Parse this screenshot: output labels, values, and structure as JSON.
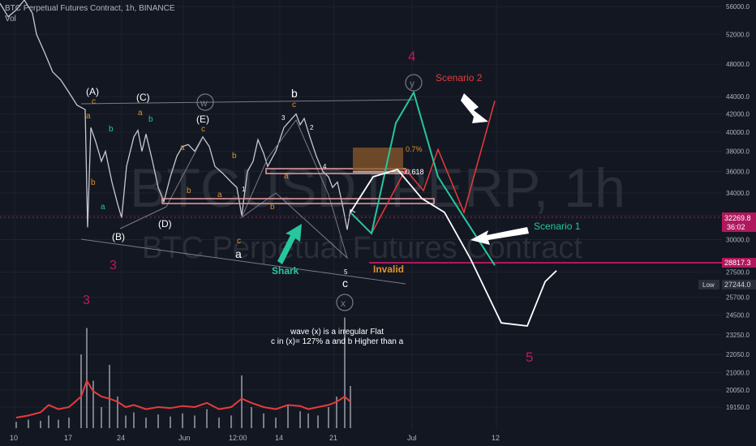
{
  "header": {
    "title": "BTC Perpetual Futures Contract, 1h, BINANCE",
    "sub": "Vol"
  },
  "watermark": {
    "line1": "BTCUSDTPERP, 1h",
    "line2": "BTC Perpetual Futures Contract"
  },
  "colors": {
    "bg": "#131722",
    "grid": "#1e222d",
    "candle": "#c7c9cf",
    "volume": "#7a7d86",
    "volume_ma": "#e83b3b",
    "orange": "#e0922a",
    "green": "#26c6a0",
    "red": "#e83b3b",
    "white": "#ffffff",
    "magenta": "#b0185e",
    "channel": "#787b86",
    "axis_text": "#b2b5be"
  },
  "chart_data": {
    "type": "line",
    "title": "BTC Perpetual Futures Contract, 1h, BINANCE",
    "xlabel": "",
    "ylabel": "",
    "y_scale": "log",
    "ylim": [
      18500,
      57000
    ],
    "x_ticks": [
      "10",
      "17",
      "24",
      "Jun",
      "12:00",
      "14",
      "21",
      "Jul",
      "12"
    ],
    "y_ticks": [
      56000,
      52000,
      48000,
      44000,
      42000,
      40000,
      38000,
      36000,
      34000,
      32000,
      30000,
      27500,
      25700,
      24500,
      23250,
      22050,
      21000,
      20050,
      19150
    ],
    "price_labels": [
      {
        "value": "32269.8",
        "sub": "36:02",
        "price": 32269.8
      },
      {
        "value": "28817.3",
        "price": 28817.3
      },
      {
        "value": "Low",
        "tag": "27244.0",
        "price": 27244.0
      }
    ],
    "fib_labels": [
      {
        "text": "0.7%",
        "price": 37900
      },
      {
        "text": "0.618",
        "price": 36250
      }
    ],
    "wave_labels": {
      "big_3_a": "3",
      "big_3_b": "3",
      "big_4": "4",
      "big_5": "5",
      "A": "(A)",
      "B": "(B)",
      "C": "(C)",
      "D": "(D)",
      "E": "(E)",
      "w": "w",
      "x": "x",
      "y": "y",
      "a": "a",
      "b": "b",
      "c": "c",
      "n1": "1",
      "n2": "2",
      "n3": "3",
      "n4": "4",
      "n5": "5",
      "la": "a",
      "lb": "b",
      "lc": "c"
    },
    "annotations": {
      "scenario1": "Scenario  1",
      "scenario2": "Scenario  2",
      "shark": "Shark",
      "invalid": "Invalid",
      "note1": "wave (x) is a irregular Flat",
      "note2": "c in (x)= 127% a and b Higher than a"
    },
    "price_path": [
      [
        0,
        56500
      ],
      [
        10,
        54500
      ],
      [
        20,
        55500
      ],
      [
        30,
        57000
      ],
      [
        40,
        55000
      ],
      [
        45,
        52000
      ],
      [
        55,
        49500
      ],
      [
        65,
        47000
      ],
      [
        75,
        46000
      ],
      [
        85,
        44500
      ],
      [
        95,
        43000
      ],
      [
        105,
        42500
      ],
      [
        108,
        31000
      ],
      [
        112,
        40500
      ],
      [
        118,
        39000
      ],
      [
        125,
        37000
      ],
      [
        130,
        38000
      ],
      [
        138,
        35000
      ],
      [
        145,
        33000
      ],
      [
        150,
        31800
      ],
      [
        156,
        36500
      ],
      [
        165,
        39500
      ],
      [
        170,
        40200
      ],
      [
        175,
        38000
      ],
      [
        180,
        39800
      ],
      [
        188,
        37000
      ],
      [
        195,
        34500
      ],
      [
        202,
        33200
      ],
      [
        210,
        35500
      ],
      [
        218,
        37500
      ],
      [
        225,
        38500
      ],
      [
        232,
        38700
      ],
      [
        240,
        38000
      ],
      [
        250,
        39500
      ],
      [
        258,
        38500
      ],
      [
        265,
        36500
      ],
      [
        275,
        35800
      ],
      [
        285,
        35000
      ],
      [
        292,
        34500
      ],
      [
        298,
        32000
      ],
      [
        305,
        36000
      ],
      [
        312,
        37000
      ],
      [
        318,
        39200
      ],
      [
        325,
        37800
      ],
      [
        330,
        36500
      ],
      [
        340,
        38000
      ],
      [
        350,
        40500
      ],
      [
        358,
        41300
      ],
      [
        365,
        42000
      ],
      [
        370,
        40800
      ],
      [
        375,
        41500
      ],
      [
        382,
        39500
      ],
      [
        390,
        37500
      ],
      [
        398,
        36000
      ],
      [
        405,
        35500
      ],
      [
        410,
        34500
      ],
      [
        416,
        35000
      ],
      [
        422,
        33000
      ],
      [
        428,
        30800
      ],
      [
        432,
        32500
      ],
      [
        438,
        32270
      ]
    ],
    "volume": [
      [
        20,
        6
      ],
      [
        35,
        8
      ],
      [
        50,
        7
      ],
      [
        60,
        12
      ],
      [
        72,
        8
      ],
      [
        85,
        10
      ],
      [
        100,
        70
      ],
      [
        107,
        95
      ],
      [
        115,
        45
      ],
      [
        125,
        20
      ],
      [
        135,
        60
      ],
      [
        145,
        30
      ],
      [
        155,
        12
      ],
      [
        165,
        15
      ],
      [
        180,
        10
      ],
      [
        195,
        13
      ],
      [
        210,
        11
      ],
      [
        225,
        14
      ],
      [
        240,
        12
      ],
      [
        255,
        18
      ],
      [
        270,
        10
      ],
      [
        285,
        12
      ],
      [
        298,
        50
      ],
      [
        310,
        20
      ],
      [
        325,
        14
      ],
      [
        340,
        10
      ],
      [
        355,
        22
      ],
      [
        370,
        16
      ],
      [
        380,
        14
      ],
      [
        392,
        12
      ],
      [
        405,
        20
      ],
      [
        415,
        30
      ],
      [
        425,
        105
      ],
      [
        432,
        40
      ]
    ],
    "volume_ma": [
      [
        20,
        10
      ],
      [
        35,
        12
      ],
      [
        50,
        15
      ],
      [
        60,
        22
      ],
      [
        72,
        18
      ],
      [
        85,
        20
      ],
      [
        100,
        30
      ],
      [
        107,
        45
      ],
      [
        115,
        35
      ],
      [
        125,
        30
      ],
      [
        135,
        28
      ],
      [
        145,
        25
      ],
      [
        155,
        20
      ],
      [
        165,
        22
      ],
      [
        180,
        18
      ],
      [
        195,
        20
      ],
      [
        210,
        19
      ],
      [
        225,
        21
      ],
      [
        240,
        20
      ],
      [
        255,
        24
      ],
      [
        270,
        18
      ],
      [
        285,
        20
      ],
      [
        298,
        28
      ],
      [
        310,
        24
      ],
      [
        325,
        20
      ],
      [
        340,
        18
      ],
      [
        355,
        22
      ],
      [
        370,
        21
      ],
      [
        380,
        18
      ],
      [
        392,
        20
      ],
      [
        405,
        22
      ],
      [
        415,
        25
      ],
      [
        425,
        30
      ],
      [
        432,
        25
      ]
    ],
    "scenario_green": [
      [
        432,
        32270
      ],
      [
        458,
        30500
      ],
      [
        488,
        41000
      ],
      [
        510,
        44500
      ],
      [
        540,
        35500
      ],
      [
        568,
        32270
      ],
      [
        610,
        28000
      ]
    ],
    "scenario_red": [
      [
        432,
        32270
      ],
      [
        458,
        30500
      ],
      [
        500,
        36200
      ],
      [
        522,
        34200
      ],
      [
        540,
        38200
      ],
      [
        572,
        32270
      ],
      [
        610,
        43500
      ]
    ],
    "scenario_white": [
      [
        432,
        32270
      ],
      [
        460,
        35500
      ],
      [
        490,
        36200
      ],
      [
        520,
        33500
      ],
      [
        548,
        32270
      ],
      [
        580,
        28500
      ],
      [
        618,
        24000
      ],
      [
        650,
        23800
      ],
      [
        672,
        26800
      ],
      [
        686,
        27600
      ]
    ],
    "lower_channel": [
      [
        100,
        31200
      ],
      [
        500,
        27000
      ]
    ],
    "upper_channel": [
      [
        100,
        43200
      ],
      [
        510,
        44000
      ]
    ]
  }
}
